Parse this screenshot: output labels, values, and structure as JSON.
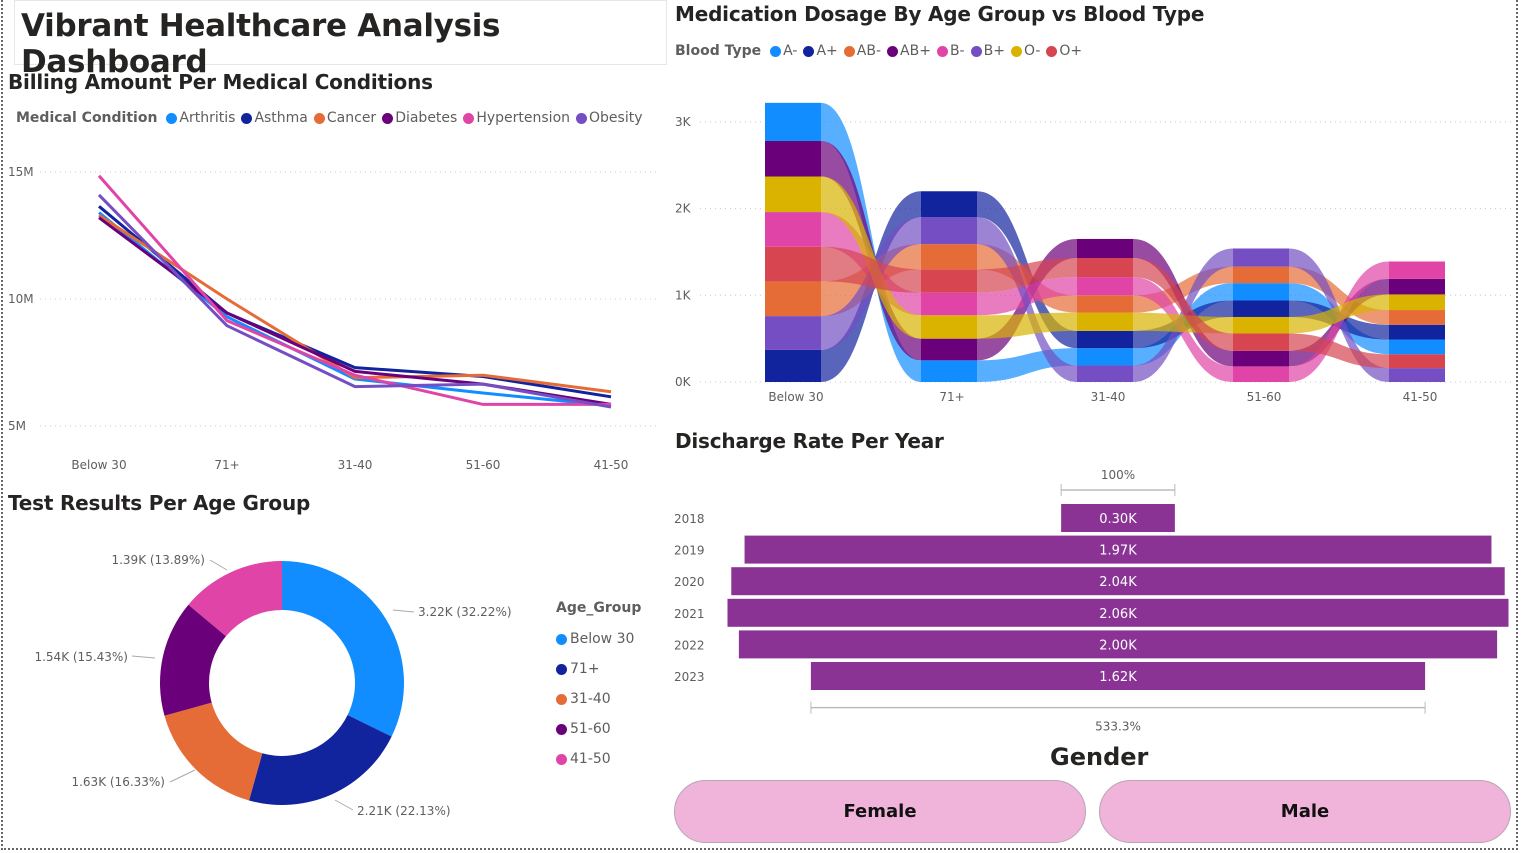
{
  "header": {
    "title": "Vibrant Healthcare Analysis Dashboard"
  },
  "colors": {
    "arthritis": "#118dff",
    "asthma": "#12239e",
    "cancer": "#e66c37",
    "diabetes": "#6b007b",
    "hypertension": "#e044a7",
    "obesity": "#744ec2",
    "olive": "#d9b300",
    "red": "#d64550",
    "funnel": "#8a3394",
    "gender_button": "#f0b3d9"
  },
  "line_chart": {
    "title": "Billing Amount Per Medical Conditions",
    "legend_title": "Medical Condition"
  },
  "ribbon_chart": {
    "title": "Medication Dosage By Age Group vs Blood Type",
    "legend_title": "Blood Type"
  },
  "donut_chart": {
    "title": "Test Results Per Age Group",
    "legend_title": "Age_Group"
  },
  "funnel_chart": {
    "title": "Discharge Rate Per Year",
    "top_label": "100%",
    "bottom_label": "533.3%"
  },
  "gender_slicer": {
    "title": "Gender",
    "options": [
      "Female",
      "Male"
    ]
  },
  "chart_data": [
    {
      "type": "line",
      "title": "Billing Amount Per Medical Conditions",
      "xlabel": "",
      "ylabel": "",
      "categories": [
        "Below 30",
        "71+",
        "31-40",
        "51-60",
        "41-50"
      ],
      "yticks": [
        "5M",
        "10M",
        "15M"
      ],
      "ytick_values": [
        5000000,
        10000000,
        15000000
      ],
      "ylim": [
        3800000,
        15600000
      ],
      "grid": true,
      "legend_position": "top-left",
      "series": [
        {
          "name": "Arthritis",
          "color": "#118dff",
          "values": [
            13400000,
            9300000,
            6850000,
            6300000,
            5800000
          ]
        },
        {
          "name": "Asthma",
          "color": "#12239e",
          "values": [
            13650000,
            9450000,
            7300000,
            6950000,
            6150000
          ]
        },
        {
          "name": "Cancer",
          "color": "#e66c37",
          "values": [
            13300000,
            10000000,
            6900000,
            7000000,
            6350000
          ]
        },
        {
          "name": "Diabetes",
          "color": "#6b007b",
          "values": [
            13200000,
            9450000,
            7150000,
            6650000,
            5850000
          ]
        },
        {
          "name": "Hypertension",
          "color": "#e044a7",
          "values": [
            14850000,
            9150000,
            7000000,
            5850000,
            5850000
          ]
        },
        {
          "name": "Obesity",
          "color": "#744ec2",
          "values": [
            14100000,
            8950000,
            6550000,
            6650000,
            5750000
          ]
        }
      ]
    },
    {
      "type": "ribbon",
      "title": "Medication Dosage By Age Group vs Blood Type",
      "categories": [
        "Below 30",
        "71+",
        "31-40",
        "51-60",
        "41-50"
      ],
      "yticks": [
        "0K",
        "1K",
        "2K",
        "3K"
      ],
      "ytick_values": [
        0,
        1000,
        2000,
        3000
      ],
      "ylim": [
        0,
        3300
      ],
      "grid": true,
      "legend_position": "top-left",
      "series_names": [
        "A-",
        "A+",
        "AB-",
        "AB+",
        "B-",
        "B+",
        "O-",
        "O+"
      ],
      "series_colors": [
        "#118dff",
        "#12239e",
        "#e66c37",
        "#6b007b",
        "#e044a7",
        "#744ec2",
        "#d9b300",
        "#d64550"
      ],
      "stacks": [
        {
          "category": "Below 30",
          "bottom_to_top": [
            "A+",
            "B+",
            "AB-",
            "O+",
            "B-",
            "O-",
            "AB+",
            "A-"
          ],
          "values": [
            370,
            390,
            400,
            400,
            400,
            410,
            410,
            440
          ]
        },
        {
          "category": "71+",
          "bottom_to_top": [
            "A-",
            "AB+",
            "O-",
            "B-",
            "O+",
            "AB-",
            "B+",
            "A+"
          ],
          "values": [
            250,
            250,
            270,
            260,
            270,
            290,
            310,
            300
          ]
        },
        {
          "category": "31-40",
          "bottom_to_top": [
            "B+",
            "A-",
            "A+",
            "O-",
            "AB-",
            "B-",
            "O+",
            "AB+"
          ],
          "values": [
            190,
            200,
            200,
            210,
            200,
            210,
            220,
            220
          ]
        },
        {
          "category": "51-60",
          "bottom_to_top": [
            "B-",
            "AB+",
            "O+",
            "O-",
            "A+",
            "A-",
            "AB-",
            "B+"
          ],
          "values": [
            180,
            180,
            200,
            190,
            190,
            200,
            190,
            210
          ]
        },
        {
          "category": "41-50",
          "bottom_to_top": [
            "B+",
            "O+",
            "A-",
            "A+",
            "AB-",
            "O-",
            "AB+",
            "B-"
          ],
          "values": [
            160,
            160,
            170,
            170,
            170,
            180,
            180,
            200
          ]
        }
      ]
    },
    {
      "type": "pie",
      "subtype": "donut",
      "title": "Test Results Per Age Group",
      "legend_title": "Age_Group",
      "legend_position": "right",
      "labels": [
        "Below 30",
        "71+",
        "31-40",
        "51-60",
        "41-50"
      ],
      "values": [
        3220,
        2210,
        1630,
        1540,
        1390
      ],
      "percents": [
        32.22,
        22.13,
        16.33,
        15.43,
        13.89
      ],
      "data_labels": [
        "3.22K (32.22%)",
        "2.21K (22.13%)",
        "1.63K (16.33%)",
        "1.54K (15.43%)",
        "1.39K (13.89%)"
      ],
      "colors": [
        "#118dff",
        "#12239e",
        "#e66c37",
        "#6b007b",
        "#e044a7"
      ]
    },
    {
      "type": "bar",
      "subtype": "funnel",
      "title": "Discharge Rate Per Year",
      "categories": [
        "2018",
        "2019",
        "2020",
        "2021",
        "2022",
        "2023"
      ],
      "values": [
        300,
        1970,
        2040,
        2060,
        2000,
        1620
      ],
      "data_labels": [
        "0.30K",
        "1.97K",
        "2.04K",
        "2.06K",
        "2.00K",
        "1.62K"
      ],
      "top_annotation": "100%",
      "bottom_annotation": "533.3%",
      "color": "#8a3394"
    }
  ]
}
